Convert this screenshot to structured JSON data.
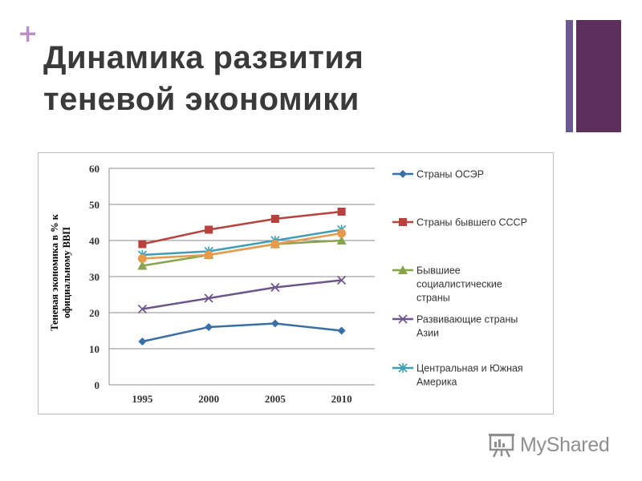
{
  "slide": {
    "bullet": "+",
    "title_lines": [
      "Динамика развития",
      "теневой экономики"
    ],
    "accent_colors": {
      "bar_thin": "#6b5a92",
      "bar_thick": "#5e2e5c",
      "bullet": "#b98fc6"
    }
  },
  "watermark": {
    "text": "MyShared",
    "icon": "presentation-board-icon"
  },
  "chart_data": {
    "type": "line",
    "title": "",
    "xlabel": "",
    "ylabel_lines": [
      "Теневая экономика в % к",
      "официальному ВВП"
    ],
    "categories": [
      "1995",
      "2000",
      "2005",
      "2010"
    ],
    "ylim": [
      0,
      60
    ],
    "yticks": [
      "0",
      "10",
      "20",
      "30",
      "40",
      "50",
      "60"
    ],
    "grid": true,
    "legend_position": "right",
    "series": [
      {
        "name": "Страны ОСЭР",
        "values": [
          12,
          16,
          17,
          15
        ],
        "color": "#3a6fa6",
        "marker": "diamond"
      },
      {
        "name": "Страны бывшего СССР",
        "values": [
          39,
          43,
          46,
          48
        ],
        "color": "#b8413e",
        "marker": "square"
      },
      {
        "name": "Бывшиее социалистические страны",
        "values": [
          33,
          36,
          39,
          40
        ],
        "color": "#86a44a",
        "marker": "triangle"
      },
      {
        "name": "Развивающие страны Азии",
        "values": [
          21,
          24,
          27,
          29
        ],
        "color": "#6e548e",
        "marker": "x"
      },
      {
        "name": "Центральная и Южная Америка",
        "values": [
          36,
          37,
          40,
          43
        ],
        "color": "#3c9fb5",
        "marker": "star"
      },
      {
        "name": "",
        "values": [
          35,
          36,
          39,
          42
        ],
        "color": "#e89a4c",
        "marker": "circle"
      }
    ],
    "legend_lines": [
      [
        "Страны ОСЭР"
      ],
      [
        "Страны бывшего СССР"
      ],
      [
        "Бывшиее",
        "социалистические",
        "страны"
      ],
      [
        "Развивающие страны",
        "Азии"
      ],
      [
        "Центральная и Южная",
        "Америка"
      ]
    ]
  }
}
